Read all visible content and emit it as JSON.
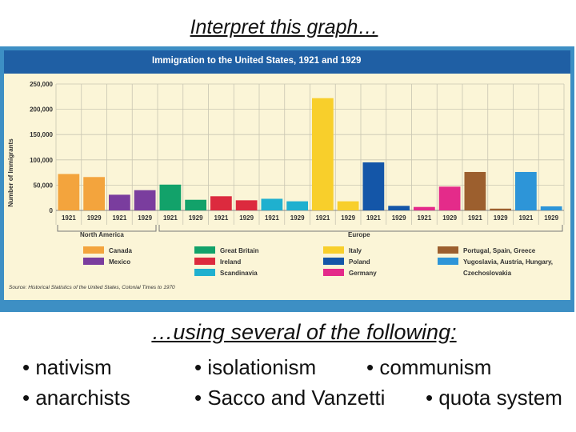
{
  "slide": {
    "title": "Interpret this graph…",
    "subtitle": "…using several of the following:",
    "terms": [
      "• nativism",
      "• isolationism",
      "• communism",
      "• anarchists",
      "• Sacco and Vanzetti",
      "• quota system"
    ]
  },
  "colors": {
    "frame": "#3d8fc4",
    "plot_bg": "#fbf5d7",
    "header_bg": "#1f5fa4",
    "canada": "#f3a43d",
    "mexico": "#7a3d9e",
    "great_britain": "#12a26a",
    "ireland": "#dc2a3e",
    "scandinavia": "#1fb0cf",
    "italy": "#f8cf2b",
    "poland": "#1456a8",
    "germany": "#e42b8a",
    "portugal_spain_greece": "#9c5f2e",
    "yugoslavia_austria_hungary_czechoslovakia": "#2d95d8"
  },
  "chart_data": {
    "type": "bar",
    "title": "Immigration to the United States, 1921 and 1929",
    "ylabel": "Number of Immigrants",
    "ylim": [
      0,
      250000
    ],
    "yticks": [
      "250,000",
      "200,000",
      "150,000",
      "100,000",
      "50,000",
      "0"
    ],
    "categories": [
      "Canada",
      "Mexico",
      "Great Britain",
      "Ireland",
      "Scandinavia",
      "Italy",
      "Poland",
      "Germany",
      "Portugal, Spain, Greece",
      "Yugoslavia, Austria, Hungary, Czechoslovakia"
    ],
    "region_of_category": [
      "North America",
      "North America",
      "Europe",
      "Europe",
      "Europe",
      "Europe",
      "Europe",
      "Europe",
      "Europe",
      "Europe"
    ],
    "groups": [
      "North America",
      "Europe"
    ],
    "x_tick_labels": [
      "1921",
      "1929"
    ],
    "series": [
      {
        "name": "1921",
        "values": [
          72000,
          31000,
          51000,
          28000,
          23000,
          222000,
          95000,
          6800,
          76000,
          76000
        ]
      },
      {
        "name": "1929",
        "values": [
          66000,
          40000,
          21000,
          20000,
          18000,
          18000,
          9000,
          47000,
          3500,
          8000
        ]
      }
    ],
    "legend": [
      "Canada",
      "Mexico",
      "Great Britain",
      "Ireland",
      "Scandinavia",
      "Italy",
      "Poland",
      "Germany",
      "Portugal, Spain, Greece",
      "Yugoslavia, Austria, Hungary,",
      "Czechoslovakia"
    ],
    "source": "Source: Historical Statistics of the United States, Colonial Times to 1970",
    "grid": true,
    "legend_placement": "bottom"
  }
}
